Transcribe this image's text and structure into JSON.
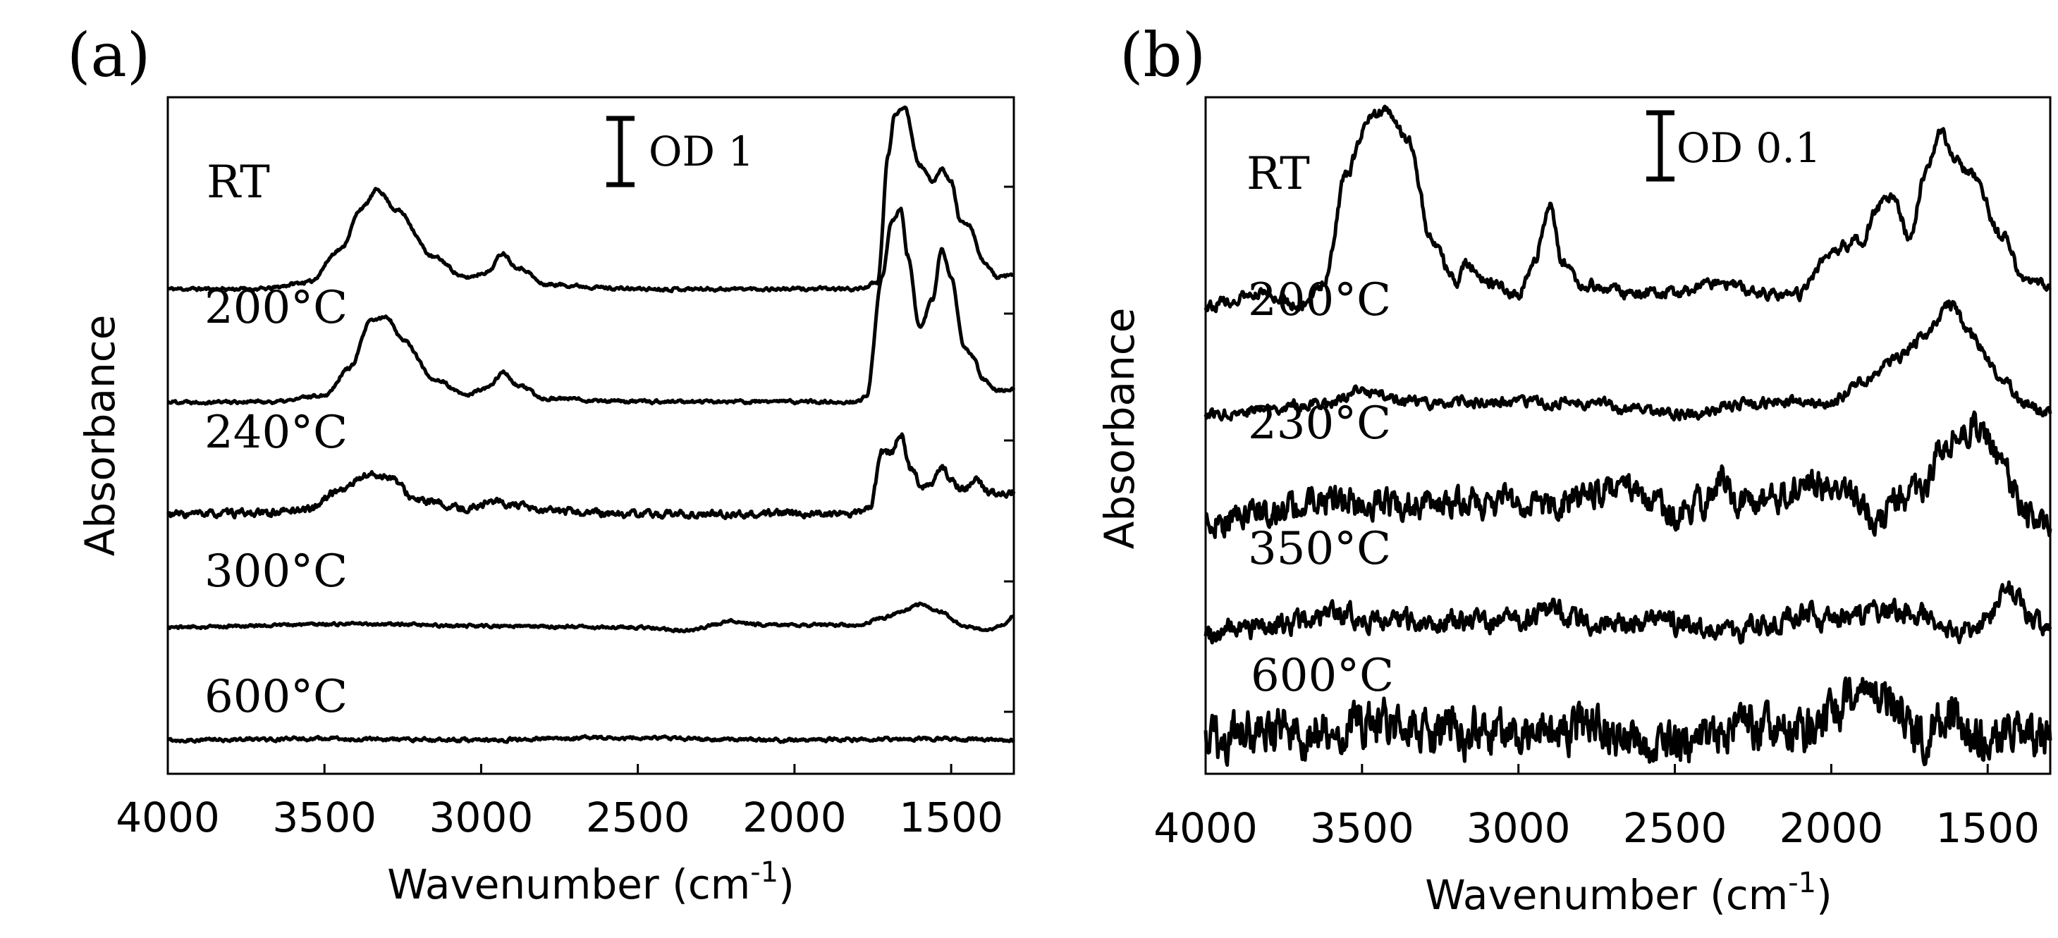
{
  "chart_data": [
    {
      "panel": "(a)",
      "type": "line",
      "ylabel": "Absorbance",
      "xlabel": "Wavenumber (cm",
      "xlabel_sup": "-1",
      "xlabel_end": ")",
      "xlim": [
        4000,
        1300
      ],
      "xticks": [
        4000,
        3500,
        3000,
        2500,
        2000,
        1500
      ],
      "scale_bar": {
        "label": "OD 1",
        "value": 1
      },
      "series": [
        {
          "name": "RT",
          "label": "RT",
          "offset": 4.3,
          "noise": 0.012,
          "seed": 11,
          "points": [
            [
              4000,
              0
            ],
            [
              3700,
              0
            ],
            [
              3550,
              0.06
            ],
            [
              3450,
              0.35
            ],
            [
              3380,
              0.72
            ],
            [
              3330,
              0.88
            ],
            [
              3270,
              0.7
            ],
            [
              3150,
              0.28
            ],
            [
              3050,
              0.1
            ],
            [
              2980,
              0.15
            ],
            [
              2930,
              0.32
            ],
            [
              2890,
              0.2
            ],
            [
              2870,
              0.18
            ],
            [
              2800,
              0.04
            ],
            [
              2500,
              0
            ],
            [
              2000,
              0
            ],
            [
              1800,
              0
            ],
            [
              1735,
              0.05
            ],
            [
              1700,
              1.2
            ],
            [
              1680,
              1.55
            ],
            [
              1650,
              1.62
            ],
            [
              1600,
              1.1
            ],
            [
              1560,
              0.95
            ],
            [
              1530,
              1.07
            ],
            [
              1500,
              0.95
            ],
            [
              1470,
              0.6
            ],
            [
              1440,
              0.55
            ],
            [
              1400,
              0.25
            ],
            [
              1350,
              0.1
            ],
            [
              1300,
              0.12
            ]
          ]
        },
        {
          "name": "200°C",
          "label": "200°C",
          "offset": 3.3,
          "noise": 0.012,
          "seed": 22,
          "points": [
            [
              4000,
              0
            ],
            [
              3650,
              0
            ],
            [
              3500,
              0.06
            ],
            [
              3420,
              0.3
            ],
            [
              3350,
              0.72
            ],
            [
              3300,
              0.75
            ],
            [
              3250,
              0.55
            ],
            [
              3150,
              0.2
            ],
            [
              3050,
              0.06
            ],
            [
              2980,
              0.12
            ],
            [
              2930,
              0.26
            ],
            [
              2880,
              0.14
            ],
            [
              2800,
              0.03
            ],
            [
              2500,
              0
            ],
            [
              1800,
              0
            ],
            [
              1770,
              0.05
            ],
            [
              1720,
              1.1
            ],
            [
              1690,
              1.6
            ],
            [
              1660,
              1.7
            ],
            [
              1640,
              1.3
            ],
            [
              1600,
              0.65
            ],
            [
              1560,
              0.9
            ],
            [
              1530,
              1.35
            ],
            [
              1500,
              1.1
            ],
            [
              1460,
              0.5
            ],
            [
              1430,
              0.4
            ],
            [
              1400,
              0.2
            ],
            [
              1350,
              0.1
            ],
            [
              1300,
              0.12
            ]
          ]
        },
        {
          "name": "240°C",
          "label": "240°C",
          "offset": 2.3,
          "noise": 0.025,
          "seed": 33,
          "points": [
            [
              4000,
              0
            ],
            [
              3700,
              0.01
            ],
            [
              3550,
              0.05
            ],
            [
              3450,
              0.22
            ],
            [
              3360,
              0.35
            ],
            [
              3300,
              0.34
            ],
            [
              3200,
              0.12
            ],
            [
              3050,
              0.05
            ],
            [
              2960,
              0.12
            ],
            [
              2900,
              0.08
            ],
            [
              2800,
              0.03
            ],
            [
              2500,
              0
            ],
            [
              1800,
              0.01
            ],
            [
              1760,
              0.05
            ],
            [
              1720,
              0.55
            ],
            [
              1690,
              0.55
            ],
            [
              1660,
              0.72
            ],
            [
              1630,
              0.4
            ],
            [
              1590,
              0.25
            ],
            [
              1560,
              0.3
            ],
            [
              1530,
              0.42
            ],
            [
              1500,
              0.3
            ],
            [
              1460,
              0.22
            ],
            [
              1420,
              0.3
            ],
            [
              1380,
              0.2
            ],
            [
              1350,
              0.18
            ],
            [
              1300,
              0.2
            ]
          ]
        },
        {
          "name": "300°C",
          "label": "300°C",
          "offset": 1.3,
          "noise": 0.01,
          "seed": 44,
          "points": [
            [
              4000,
              0
            ],
            [
              3400,
              0.03
            ],
            [
              3000,
              0.01
            ],
            [
              2500,
              0
            ],
            [
              2350,
              -0.03
            ],
            [
              2250,
              0.02
            ],
            [
              2200,
              0.06
            ],
            [
              2100,
              0.02
            ],
            [
              1800,
              0.02
            ],
            [
              1720,
              0.08
            ],
            [
              1650,
              0.15
            ],
            [
              1600,
              0.2
            ],
            [
              1540,
              0.14
            ],
            [
              1450,
              0.0
            ],
            [
              1380,
              -0.03
            ],
            [
              1330,
              0.03
            ],
            [
              1300,
              0.1
            ]
          ]
        },
        {
          "name": "600°C",
          "label": "600°C",
          "offset": 0.3,
          "noise": 0.012,
          "seed": 55,
          "points": [
            [
              4000,
              0
            ],
            [
              3500,
              0.01
            ],
            [
              3000,
              0
            ],
            [
              2600,
              0.02
            ],
            [
              2000,
              0
            ],
            [
              1600,
              0.01
            ],
            [
              1300,
              0
            ]
          ]
        }
      ]
    },
    {
      "panel": "(b)",
      "type": "line",
      "ylabel": "Absorbance",
      "xlabel": "Wavenumber (cm",
      "xlabel_sup": "-1",
      "xlabel_end": ")",
      "xlim": [
        4000,
        1300
      ],
      "xticks": [
        4000,
        3500,
        3000,
        2500,
        2000,
        1500
      ],
      "scale_bar": {
        "label": "OD 0.1",
        "value": 0.1
      },
      "series": [
        {
          "name": "RT",
          "label": "RT",
          "offset": 0.43,
          "noise": 0.004,
          "seed": 66,
          "points": [
            [
              4000,
              0
            ],
            [
              3800,
              0.01
            ],
            [
              3700,
              0.0
            ],
            [
              3620,
              0.02
            ],
            [
              3550,
              0.12
            ],
            [
              3480,
              0.17
            ],
            [
              3420,
              0.18
            ],
            [
              3350,
              0.15
            ],
            [
              3280,
              0.06
            ],
            [
              3200,
              0.02
            ],
            [
              3170,
              0.04
            ],
            [
              3100,
              0.02
            ],
            [
              3000,
              0.01
            ],
            [
              2950,
              0.04
            ],
            [
              2900,
              0.09
            ],
            [
              2860,
              0.04
            ],
            [
              2800,
              0.02
            ],
            [
              2650,
              0.01
            ],
            [
              2500,
              0.01
            ],
            [
              2350,
              0.02
            ],
            [
              2200,
              0.01
            ],
            [
              2100,
              0.01
            ],
            [
              2000,
              0.05
            ],
            [
              1900,
              0.06
            ],
            [
              1850,
              0.09
            ],
            [
              1800,
              0.1
            ],
            [
              1750,
              0.06
            ],
            [
              1700,
              0.12
            ],
            [
              1650,
              0.16
            ],
            [
              1600,
              0.13
            ],
            [
              1550,
              0.12
            ],
            [
              1450,
              0.06
            ],
            [
              1380,
              0.02
            ],
            [
              1300,
              0.02
            ]
          ]
        },
        {
          "name": "200°C",
          "label": "200°C",
          "offset": 0.33,
          "noise": 0.004,
          "seed": 77,
          "points": [
            [
              4000,
              0
            ],
            [
              3600,
              0.01
            ],
            [
              3500,
              0.02
            ],
            [
              3300,
              0.01
            ],
            [
              2800,
              0.01
            ],
            [
              2500,
              0.0
            ],
            [
              2200,
              0.01
            ],
            [
              2000,
              0.01
            ],
            [
              1900,
              0.03
            ],
            [
              1800,
              0.05
            ],
            [
              1700,
              0.07
            ],
            [
              1620,
              0.1
            ],
            [
              1550,
              0.07
            ],
            [
              1450,
              0.03
            ],
            [
              1380,
              0.01
            ],
            [
              1300,
              0.0
            ]
          ]
        },
        {
          "name": "230°C",
          "label": "230°C",
          "offset": 0.23,
          "noise": 0.011,
          "seed": 88,
          "points": [
            [
              4000,
              0
            ],
            [
              3800,
              0.01
            ],
            [
              3600,
              0.02
            ],
            [
              3400,
              0.015
            ],
            [
              3200,
              0.02
            ],
            [
              3000,
              0.02
            ],
            [
              2800,
              0.02
            ],
            [
              2700,
              0.03
            ],
            [
              2650,
              0.03
            ],
            [
              2500,
              0.01
            ],
            [
              2400,
              0.02
            ],
            [
              2350,
              0.04
            ],
            [
              2300,
              0.02
            ],
            [
              2200,
              0.02
            ],
            [
              2100,
              0.03
            ],
            [
              2050,
              0.035
            ],
            [
              2000,
              0.03
            ],
            [
              1900,
              0.02
            ],
            [
              1850,
              0.0
            ],
            [
              1800,
              0.02
            ],
            [
              1700,
              0.03
            ],
            [
              1650,
              0.07
            ],
            [
              1600,
              0.085
            ],
            [
              1550,
              0.09
            ],
            [
              1500,
              0.08
            ],
            [
              1450,
              0.05
            ],
            [
              1400,
              0.02
            ],
            [
              1350,
              0.0
            ],
            [
              1300,
              0.0
            ]
          ]
        },
        {
          "name": "350°C",
          "label": "350°C",
          "offset": 0.13,
          "noise": 0.008,
          "seed": 99,
          "points": [
            [
              4000,
              0
            ],
            [
              3800,
              0.005
            ],
            [
              3600,
              0.015
            ],
            [
              3400,
              0.01
            ],
            [
              3200,
              0.01
            ],
            [
              3000,
              0.01
            ],
            [
              2900,
              0.02
            ],
            [
              2800,
              0.01
            ],
            [
              2600,
              0.01
            ],
            [
              2400,
              0.005
            ],
            [
              2300,
              0.0
            ],
            [
              2200,
              0.01
            ],
            [
              2100,
              0.015
            ],
            [
              2000,
              0.01
            ],
            [
              1900,
              0.015
            ],
            [
              1800,
              0.02
            ],
            [
              1700,
              0.015
            ],
            [
              1600,
              0.0
            ],
            [
              1500,
              0.01
            ],
            [
              1440,
              0.04
            ],
            [
              1400,
              0.035
            ],
            [
              1360,
              0.01
            ],
            [
              1300,
              0.0
            ]
          ]
        },
        {
          "name": "600°C",
          "label": "600°C",
          "offset": 0.03,
          "noise": 0.017,
          "seed": 123,
          "points": [
            [
              4000,
              0
            ],
            [
              3800,
              0.01
            ],
            [
              3500,
              0.015
            ],
            [
              3200,
              0.008
            ],
            [
              2900,
              0.01
            ],
            [
              2800,
              0.015
            ],
            [
              2700,
              0.005
            ],
            [
              2500,
              0.0
            ],
            [
              2300,
              0.01
            ],
            [
              2200,
              0.015
            ],
            [
              2100,
              0.01
            ],
            [
              2000,
              0.02
            ],
            [
              1950,
              0.04
            ],
            [
              1900,
              0.05
            ],
            [
              1850,
              0.045
            ],
            [
              1800,
              0.03
            ],
            [
              1700,
              0.0
            ],
            [
              1650,
              0.02
            ],
            [
              1600,
              0.02
            ],
            [
              1550,
              0.0
            ],
            [
              1450,
              0.0
            ],
            [
              1400,
              0.01
            ],
            [
              1300,
              0.0
            ]
          ]
        }
      ]
    }
  ]
}
